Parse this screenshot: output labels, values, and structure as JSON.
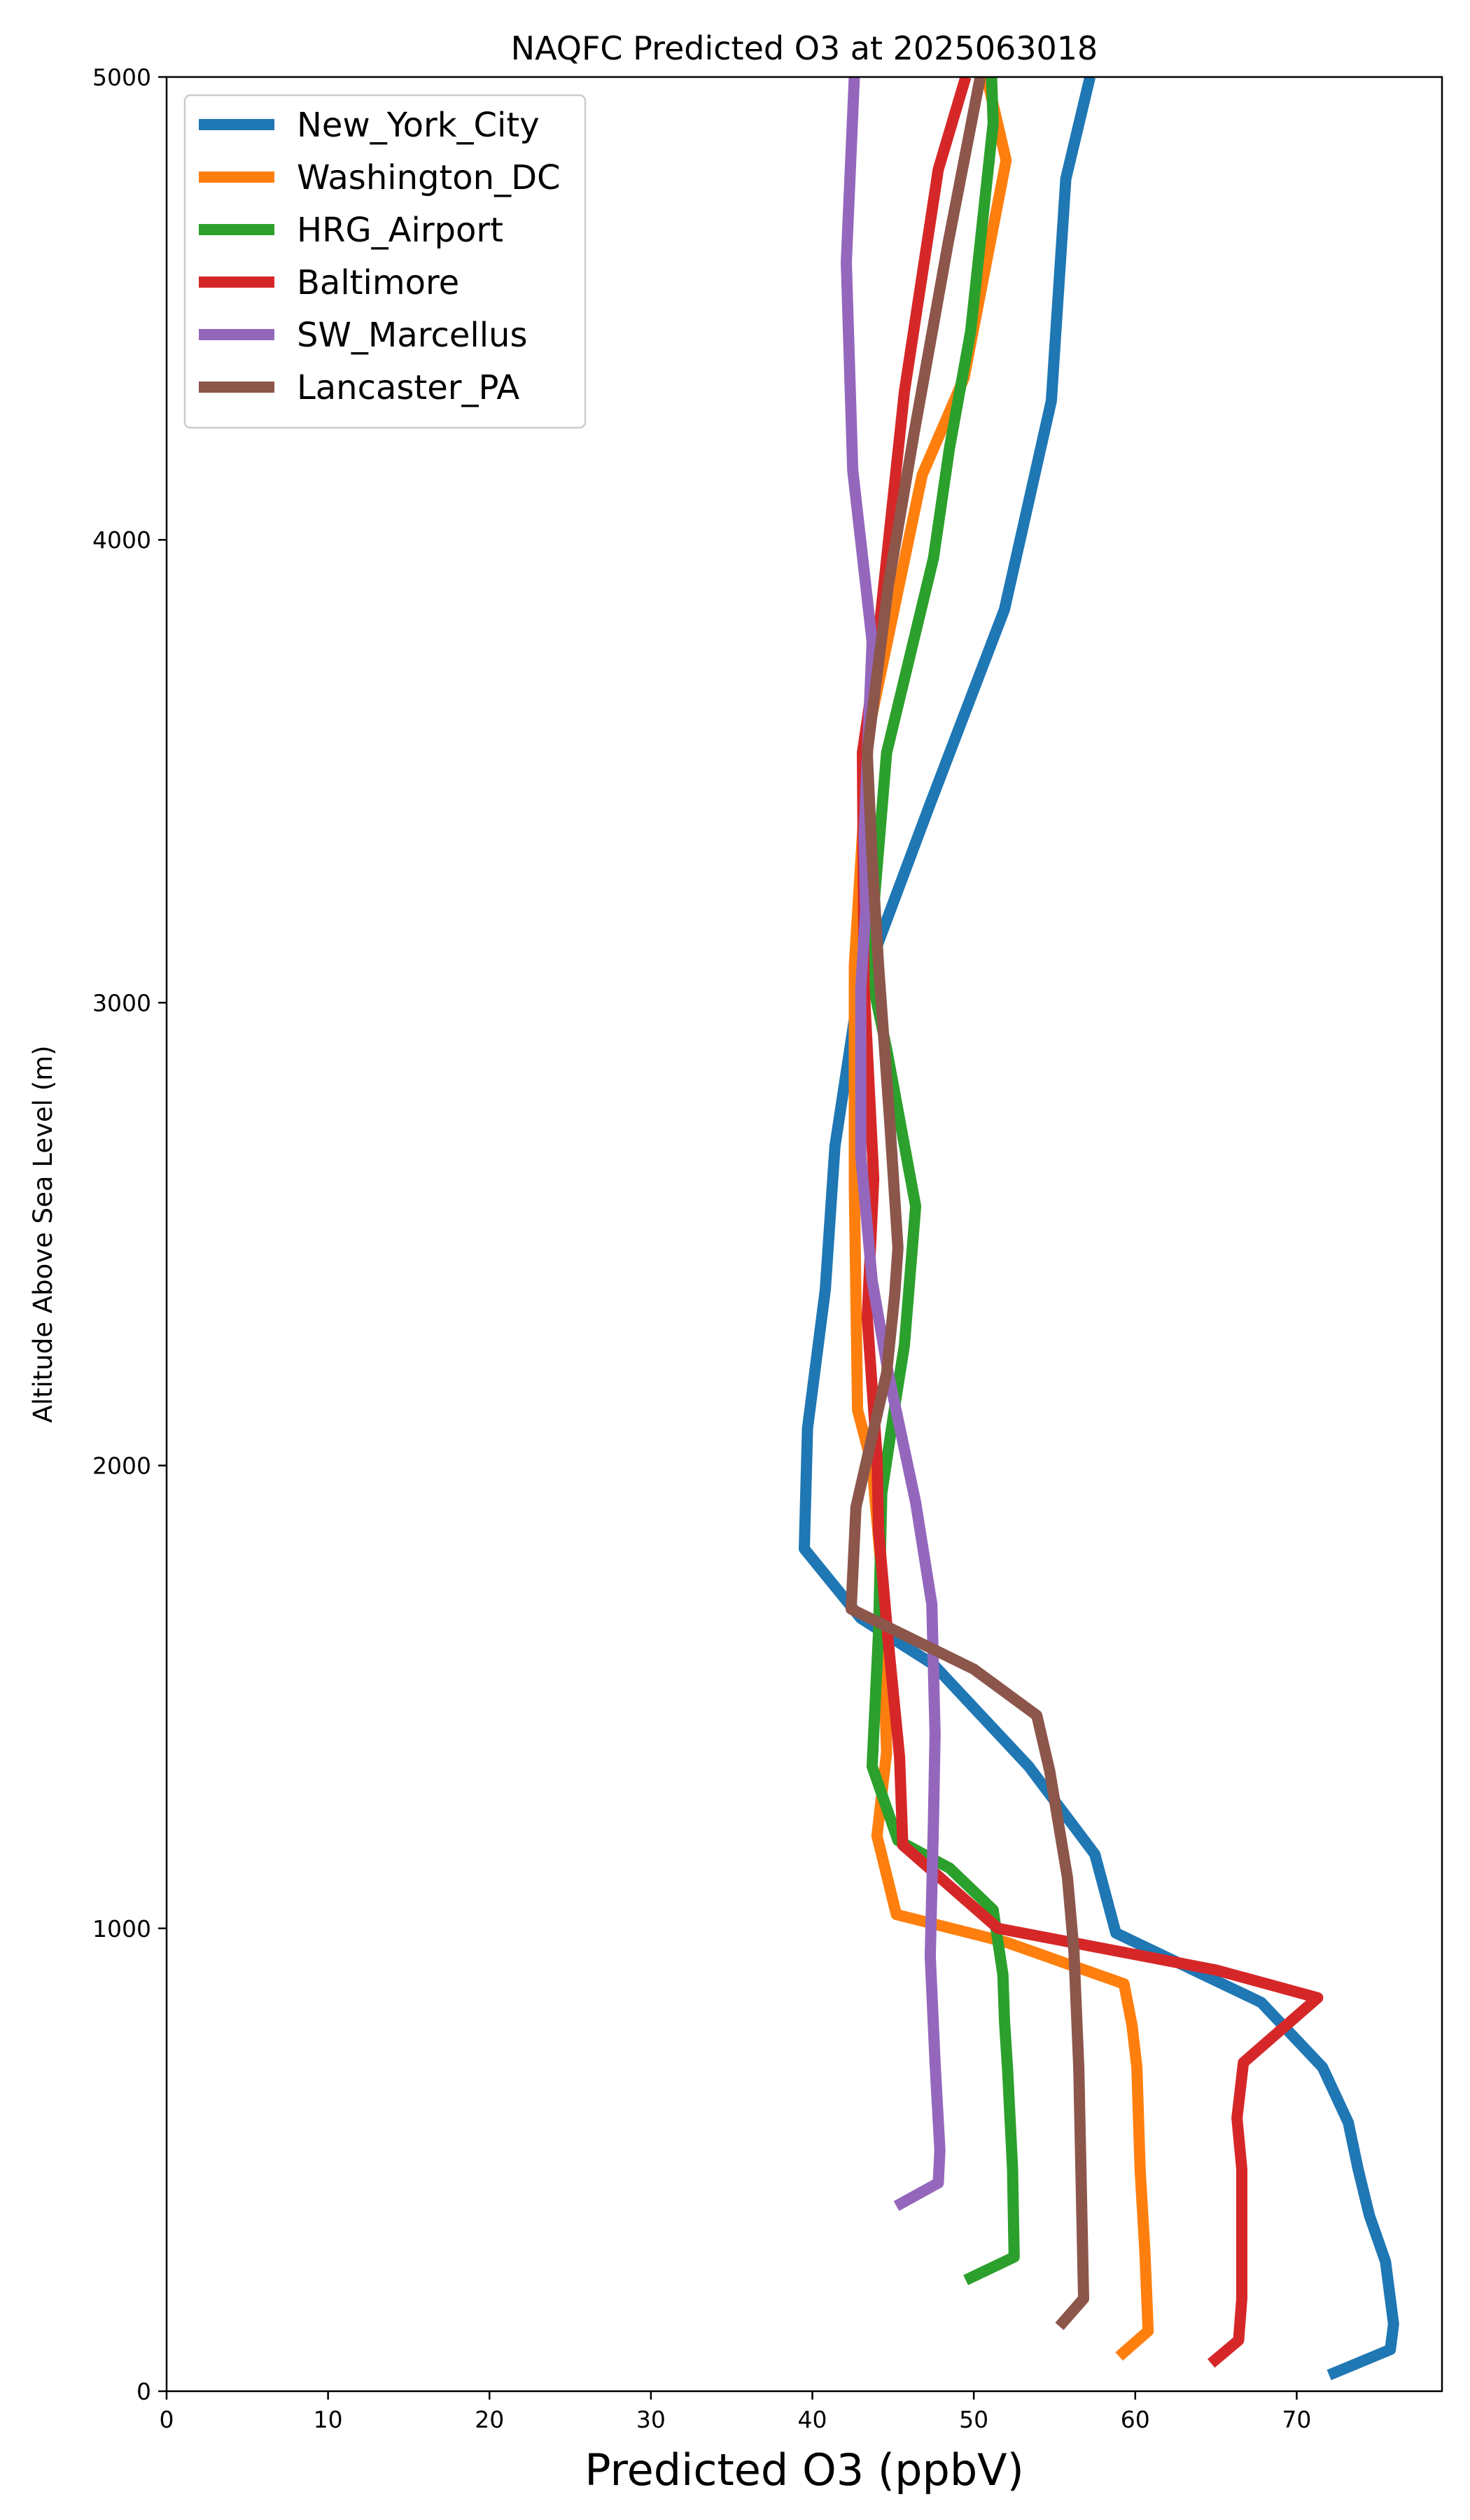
{
  "chart_data": {
    "type": "line",
    "title": "NAQFC Predicted O3 at 2025063018",
    "xlabel": "Predicted O3 (ppbV)",
    "ylabel": "Altitude Above Sea Level (m)",
    "xlim": [
      0,
      79
    ],
    "ylim": [
      0,
      5000
    ],
    "xticks": [
      0,
      10,
      20,
      30,
      40,
      50,
      60,
      70
    ],
    "yticks": [
      0,
      1000,
      2000,
      3000,
      4000,
      5000
    ],
    "grid": false,
    "legend_position": "top-left",
    "series": [
      {
        "name": "New_York_City",
        "color": "#1f77b4",
        "points": [
          [
            72,
            35
          ],
          [
            75.8,
            90
          ],
          [
            76,
            145
          ],
          [
            75.5,
            280
          ],
          [
            74.5,
            380
          ],
          [
            73.8,
            480
          ],
          [
            73.2,
            580
          ],
          [
            71.6,
            700
          ],
          [
            67.8,
            840
          ],
          [
            63,
            920
          ],
          [
            58.8,
            990
          ],
          [
            57.5,
            1160
          ],
          [
            53.4,
            1350
          ],
          [
            47.5,
            1570
          ],
          [
            43,
            1670
          ],
          [
            39.5,
            1820
          ],
          [
            39.7,
            2080
          ],
          [
            40.8,
            2380
          ],
          [
            41.4,
            2690
          ],
          [
            42.8,
            3010
          ],
          [
            47.3,
            3430
          ],
          [
            51.9,
            3850
          ],
          [
            54.8,
            4300
          ],
          [
            55.7,
            4780
          ],
          [
            57.2,
            5000
          ]
        ]
      },
      {
        "name": "Washington_DC",
        "color": "#ff7f0e",
        "points": [
          [
            59,
            75
          ],
          [
            60.8,
            130
          ],
          [
            60.6,
            300
          ],
          [
            60.3,
            480
          ],
          [
            60.2,
            590
          ],
          [
            60.1,
            700
          ],
          [
            59.8,
            790
          ],
          [
            59.3,
            880
          ],
          [
            52,
            970
          ],
          [
            45.2,
            1030
          ],
          [
            44,
            1200
          ],
          [
            44.6,
            1380
          ],
          [
            44.2,
            1800
          ],
          [
            43.7,
            2000
          ],
          [
            42.8,
            2120
          ],
          [
            42.6,
            2600
          ],
          [
            42.6,
            3080
          ],
          [
            43.5,
            3590
          ],
          [
            46.8,
            4140
          ],
          [
            49.4,
            4350
          ],
          [
            52,
            4820
          ],
          [
            50.8,
            5000
          ]
        ]
      },
      {
        "name": "HRG_Airport",
        "color": "#2ca02c",
        "points": [
          [
            49.5,
            240
          ],
          [
            52.5,
            290
          ],
          [
            52.4,
            480
          ],
          [
            52.1,
            690
          ],
          [
            51.9,
            800
          ],
          [
            51.8,
            900
          ],
          [
            51.2,
            1040
          ],
          [
            48.5,
            1130
          ],
          [
            45.3,
            1190
          ],
          [
            43.7,
            1350
          ],
          [
            44.1,
            1640
          ],
          [
            44.3,
            1940
          ],
          [
            45.2,
            2150
          ],
          [
            45.7,
            2260
          ],
          [
            46.4,
            2560
          ],
          [
            44.6,
            2900
          ],
          [
            43.5,
            3080
          ],
          [
            44.6,
            3540
          ],
          [
            47.5,
            3960
          ],
          [
            48.5,
            4200
          ],
          [
            49.8,
            4450
          ],
          [
            51.2,
            4900
          ],
          [
            51.1,
            5000
          ]
        ]
      },
      {
        "name": "Baltimore",
        "color": "#d62728",
        "points": [
          [
            64.7,
            60
          ],
          [
            66.4,
            110
          ],
          [
            66.6,
            200
          ],
          [
            66.6,
            480
          ],
          [
            66.3,
            590
          ],
          [
            66.7,
            710
          ],
          [
            71.3,
            850
          ],
          [
            65,
            910
          ],
          [
            51.5,
            1000
          ],
          [
            45.6,
            1180
          ],
          [
            45.4,
            1370
          ],
          [
            44.7,
            1620
          ],
          [
            44.1,
            1860
          ],
          [
            44.0,
            2020
          ],
          [
            43.4,
            2320
          ],
          [
            43.8,
            2620
          ],
          [
            43.2,
            3040
          ],
          [
            43.1,
            3540
          ],
          [
            43.9,
            3730
          ],
          [
            45.7,
            4320
          ],
          [
            47.8,
            4800
          ],
          [
            49.5,
            5000
          ]
        ]
      },
      {
        "name": "SW_Marcellus",
        "color": "#9467bd",
        "points": [
          [
            45.2,
            400
          ],
          [
            47.8,
            450
          ],
          [
            47.9,
            520
          ],
          [
            47.6,
            710
          ],
          [
            47.3,
            940
          ],
          [
            47.5,
            1230
          ],
          [
            47.6,
            1420
          ],
          [
            47.4,
            1700
          ],
          [
            46.4,
            1920
          ],
          [
            44.7,
            2200
          ],
          [
            43.7,
            2400
          ],
          [
            43.0,
            2670
          ],
          [
            43.0,
            3030
          ],
          [
            43.3,
            3200
          ],
          [
            43.2,
            3360
          ],
          [
            43.7,
            3780
          ],
          [
            42.5,
            4150
          ],
          [
            42.1,
            4600
          ],
          [
            42.6,
            5000
          ]
        ]
      },
      {
        "name": "Lancaster_PA",
        "color": "#8c564b",
        "points": [
          [
            55.3,
            140
          ],
          [
            56.8,
            200
          ],
          [
            56.5,
            700
          ],
          [
            56.2,
            950
          ],
          [
            55.8,
            1110
          ],
          [
            54.7,
            1340
          ],
          [
            53.9,
            1460
          ],
          [
            50,
            1560
          ],
          [
            42.4,
            1690
          ],
          [
            42.7,
            1910
          ],
          [
            44.6,
            2200
          ],
          [
            45.1,
            2370
          ],
          [
            45.3,
            2470
          ],
          [
            44.8,
            2740
          ],
          [
            44.1,
            3080
          ],
          [
            43.7,
            3310
          ],
          [
            43.4,
            3540
          ],
          [
            44.7,
            3900
          ],
          [
            46.3,
            4230
          ],
          [
            48.4,
            4640
          ],
          [
            50.4,
            5000
          ]
        ]
      }
    ]
  }
}
